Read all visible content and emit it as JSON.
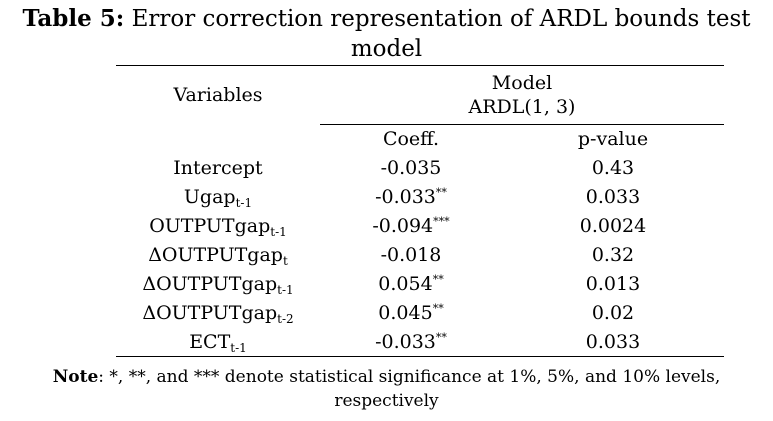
{
  "title": {
    "label": "Table 5:",
    "text": "Error correction representation of ARDL bounds test model"
  },
  "header": {
    "variables": "Variables",
    "model_line1": "Model",
    "model_line2": "ARDL(1, 3)",
    "coeff": "Coeff.",
    "pvalue": "p-value"
  },
  "rows": [
    {
      "var": "Intercept",
      "sub": "",
      "coef": "-0.035",
      "sig": "",
      "p": "0.43"
    },
    {
      "var": "Ugap",
      "sub": "t-1",
      "coef": "-0.033",
      "sig": "**",
      "p": "0.033"
    },
    {
      "var": "OUTPUTgap",
      "sub": "t-1",
      "coef": "-0.094",
      "sig": "***",
      "p": "0.0024"
    },
    {
      "var": "ΔOUTPUTgap",
      "sub": "t",
      "coef": "-0.018",
      "sig": "",
      "p": "0.32"
    },
    {
      "var": "ΔOUTPUTgap",
      "sub": "t-1",
      "coef": "0.054",
      "sig": "**",
      "p": "0.013"
    },
    {
      "var": "ΔOUTPUTgap",
      "sub": "t-2",
      "coef": "0.045",
      "sig": "**",
      "p": "0.02"
    },
    {
      "var": "ECT",
      "sub": "t-1",
      "coef": "-0.033",
      "sig": "**",
      "p": "0.033"
    }
  ],
  "note": {
    "label": "Note",
    "text": ": *, **, and *** denote statistical significance at 1%, 5%, and 10% levels, respectively"
  }
}
